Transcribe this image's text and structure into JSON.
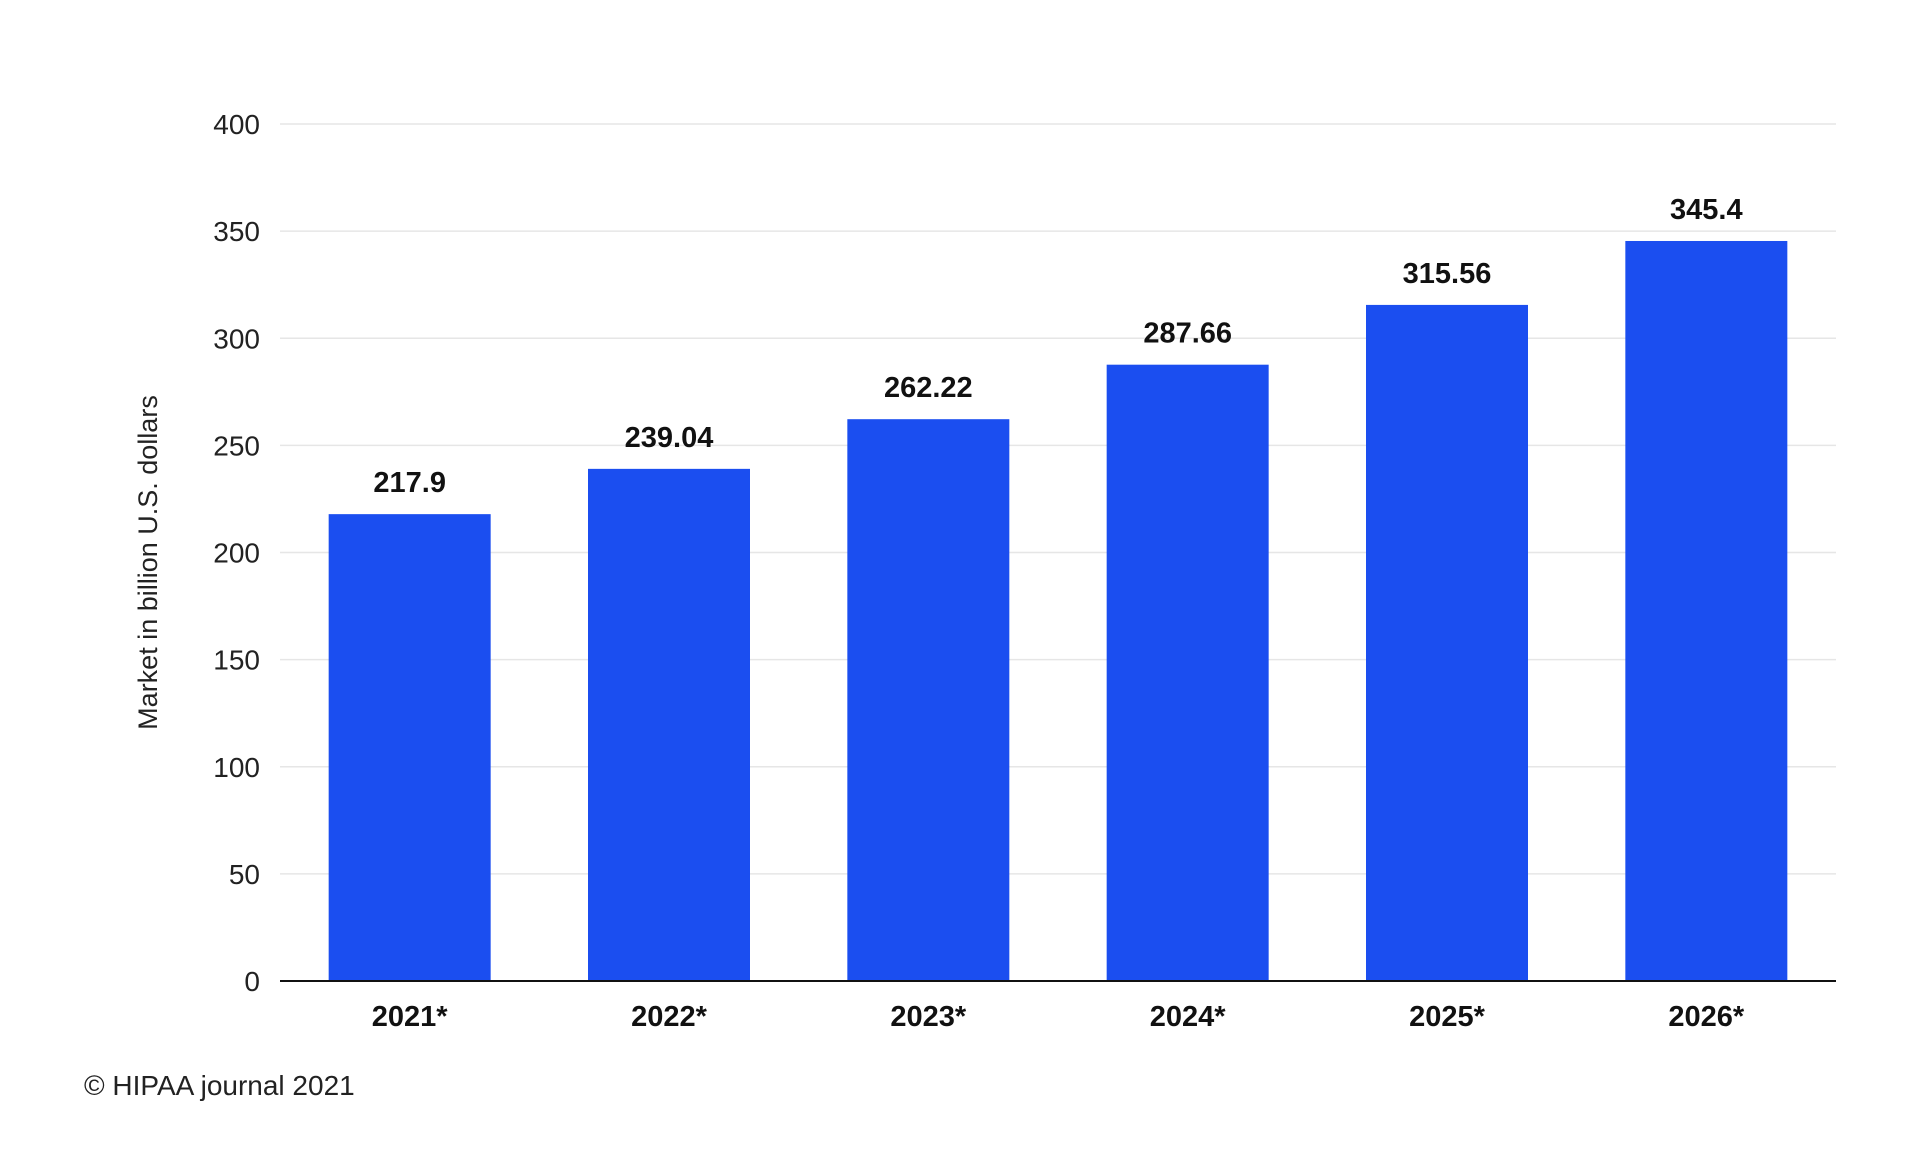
{
  "chart_data": {
    "type": "bar",
    "categories": [
      "2021*",
      "2022*",
      "2023*",
      "2024*",
      "2025*",
      "2026*"
    ],
    "values": [
      217.9,
      239.04,
      262.22,
      287.66,
      315.56,
      345.4
    ],
    "value_labels": [
      "217.9",
      "239.04",
      "262.22",
      "287.66",
      "315.56",
      "345.4"
    ],
    "ylabel": "Market in billion U.S. dollars",
    "xlabel": "",
    "ylim": [
      0,
      400
    ],
    "yticks": [
      0,
      50,
      100,
      150,
      200,
      250,
      300,
      350,
      400
    ],
    "grid": true,
    "legend": "none",
    "bar_color": "#1b4ef0"
  },
  "source_text": "© HIPAA journal 2021"
}
